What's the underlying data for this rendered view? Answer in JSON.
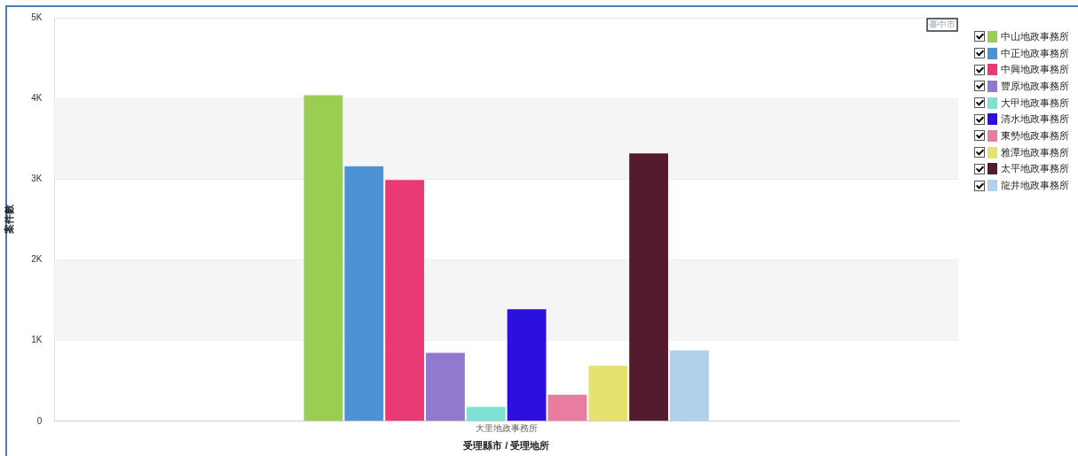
{
  "chart_data": {
    "type": "bar",
    "xlabel": "受理縣市 / 受理地所",
    "ylabel": "案件數",
    "categories": [
      "大里地政事務所"
    ],
    "series": [
      {
        "name": "中山地政事務所",
        "color": "#9acd52",
        "values": [
          4050
        ]
      },
      {
        "name": "中正地政事務所",
        "color": "#4b93d5",
        "values": [
          3170
        ]
      },
      {
        "name": "中興地政事務所",
        "color": "#ea3a75",
        "values": [
          3000
        ]
      },
      {
        "name": "豐原地政事務所",
        "color": "#9179cf",
        "values": [
          860
        ]
      },
      {
        "name": "大甲地政事務所",
        "color": "#7fe0d4",
        "values": [
          190
        ]
      },
      {
        "name": "清水地政事務所",
        "color": "#2b10e0",
        "values": [
          1400
        ]
      },
      {
        "name": "東勢地政事務所",
        "color": "#e87d9f",
        "values": [
          340
        ]
      },
      {
        "name": "雅潭地政事務所",
        "color": "#e6e26f",
        "values": [
          700
        ]
      },
      {
        "name": "太平地政事務所",
        "color": "#541a2e",
        "values": [
          3330
        ]
      },
      {
        "name": "龍井地政事務所",
        "color": "#b1d0ec",
        "values": [
          890
        ]
      }
    ],
    "ylim": [
      0,
      5000
    ],
    "yticks": [
      {
        "value": 0,
        "label": "0"
      },
      {
        "value": 1000,
        "label": "1K"
      },
      {
        "value": 2000,
        "label": "2K"
      },
      {
        "value": 3000,
        "label": "3K"
      },
      {
        "value": 4000,
        "label": "4K"
      },
      {
        "value": 5000,
        "label": "5K"
      }
    ],
    "bands": [
      {
        "axis": "y",
        "from": 1000,
        "to": 2000,
        "color": "#f5f5f5"
      },
      {
        "axis": "y",
        "from": 3000,
        "to": 4000,
        "color": "#f5f5f5"
      }
    ],
    "grid": "y",
    "legend": "right",
    "annotations": [
      "臺中市"
    ]
  }
}
